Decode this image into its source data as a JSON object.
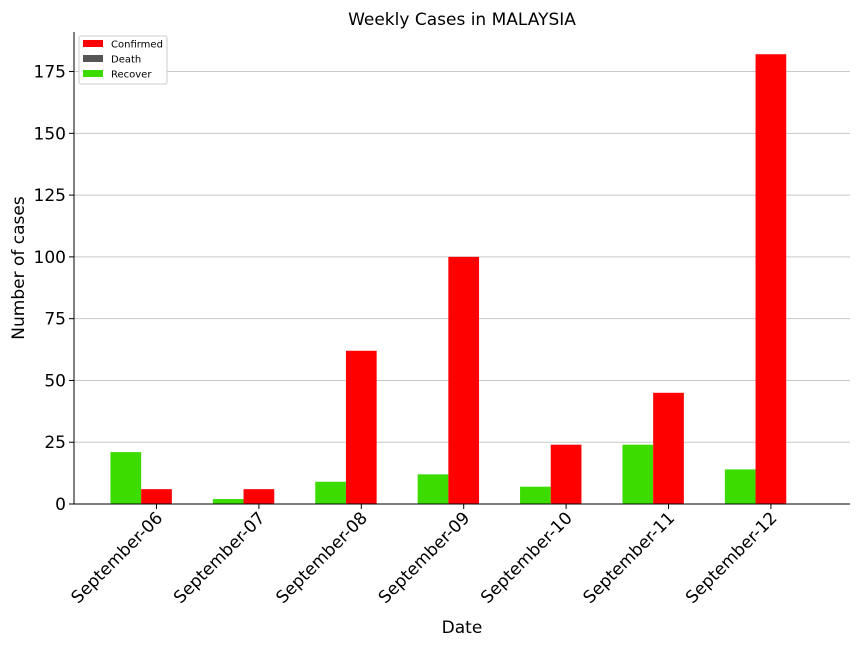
{
  "chart_data": {
    "type": "bar",
    "title": "Weekly Cases in MALAYSIA",
    "xlabel": "Date",
    "ylabel": "Number of cases",
    "categories": [
      "September-06",
      "September-07",
      "September-08",
      "September-09",
      "September-10",
      "September-11",
      "September-12"
    ],
    "series": [
      {
        "name": "Confirmed",
        "color": "#ff0000",
        "values": [
          6,
          6,
          62,
          100,
          24,
          45,
          182
        ]
      },
      {
        "name": "Death",
        "color": "#555555",
        "values": [
          0,
          0,
          0,
          0,
          0,
          0,
          0
        ]
      },
      {
        "name": "Recover",
        "color": "#3ddc00",
        "values": [
          21,
          2,
          9,
          12,
          7,
          24,
          14
        ]
      }
    ],
    "yticks": [
      0,
      25,
      50,
      75,
      100,
      125,
      150,
      175
    ],
    "ylim": [
      0,
      191
    ],
    "grid": "horizontal",
    "legend_position": "top-left"
  }
}
